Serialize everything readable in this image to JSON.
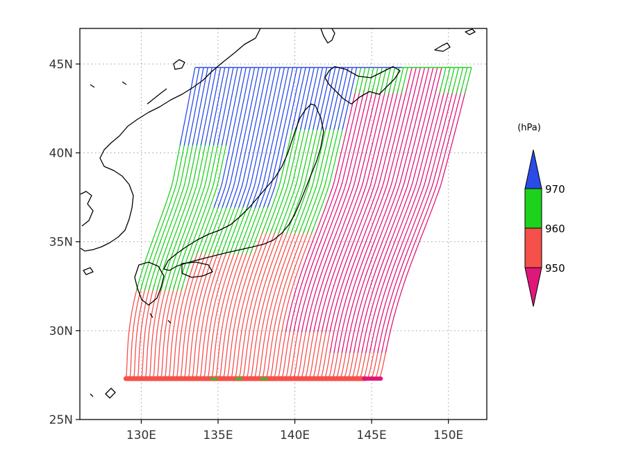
{
  "map": {
    "lon_range": [
      126,
      152.5
    ],
    "lat_range": [
      25,
      47
    ],
    "lon_ticks": [
      {
        "value": 130,
        "label": "130E"
      },
      {
        "value": 135,
        "label": "135E"
      },
      {
        "value": 140,
        "label": "140E"
      },
      {
        "value": 145,
        "label": "145E"
      },
      {
        "value": 150,
        "label": "150E"
      }
    ],
    "lat_ticks": [
      {
        "value": 25,
        "label": "25N"
      },
      {
        "value": 30,
        "label": "30N"
      },
      {
        "value": 35,
        "label": "35N"
      },
      {
        "value": 40,
        "label": "40N"
      },
      {
        "value": 45,
        "label": "45N"
      }
    ],
    "grid": true,
    "colors": {
      "above_970": "#2a4be8",
      "960_970": "#1cd21c",
      "950_960": "#f5504a",
      "below_950": "#e0177a",
      "coast": "#000000",
      "grid": "#9a9a9a"
    },
    "track_start_lat": 27.3,
    "track_end_lat": 44.8,
    "track_start_lon_range": [
      129,
      145.5
    ],
    "track_end_lon_range": [
      133.5,
      151.5
    ],
    "pressure_thresholds": [
      950,
      960,
      970
    ]
  },
  "legend": {
    "unit": "(hPa)",
    "labels": [
      "970",
      "960",
      "950"
    ],
    "placement": "right"
  }
}
